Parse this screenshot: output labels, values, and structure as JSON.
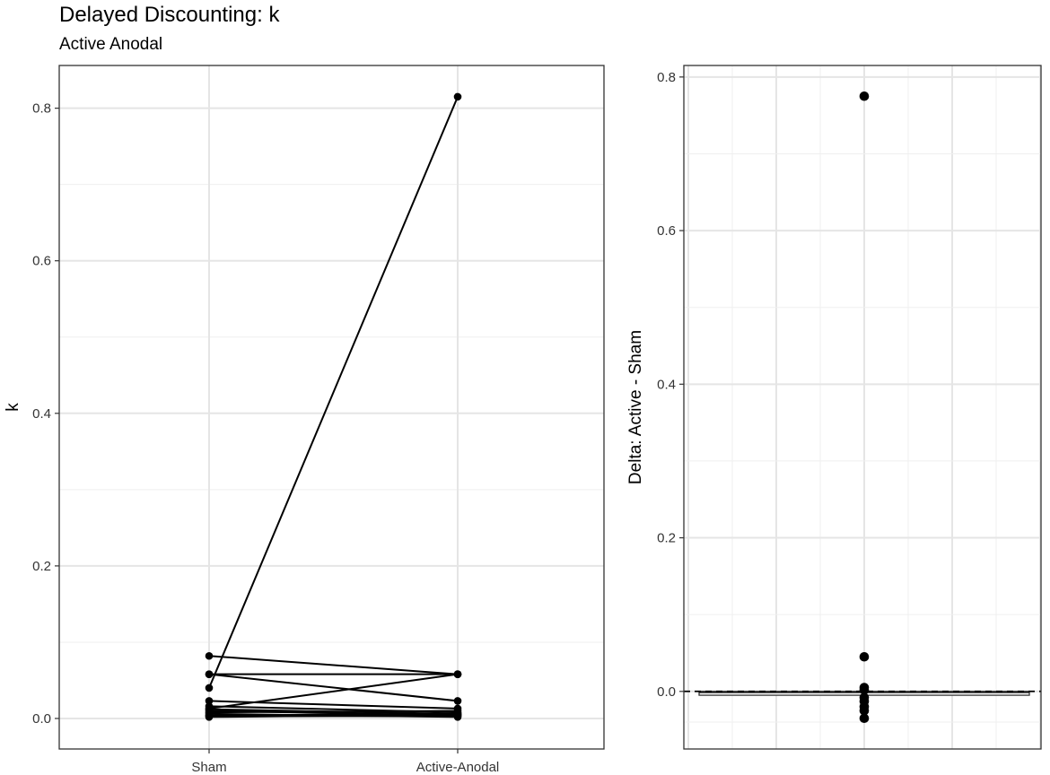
{
  "title": "Delayed Discounting: k",
  "subtitle": "Active Anodal",
  "chart_data": [
    {
      "type": "line",
      "ylabel": "k",
      "xlabel": "",
      "categories": [
        "Sham",
        "Active-Anodal"
      ],
      "ylim": [
        -0.04,
        0.856
      ],
      "yticks": [
        0.0,
        0.2,
        0.4,
        0.6,
        0.8
      ],
      "grid": true,
      "series": [
        {
          "values": [
            0.04,
            0.815
          ]
        },
        {
          "values": [
            0.082,
            0.058
          ]
        },
        {
          "values": [
            0.058,
            0.058
          ]
        },
        {
          "values": [
            0.058,
            0.023
          ]
        },
        {
          "values": [
            0.013,
            0.058
          ]
        },
        {
          "values": [
            0.023,
            0.013
          ]
        },
        {
          "values": [
            0.016,
            0.008
          ]
        },
        {
          "values": [
            0.012,
            0.006
          ]
        },
        {
          "values": [
            0.01,
            0.004
          ]
        },
        {
          "values": [
            0.008,
            0.01
          ]
        },
        {
          "values": [
            0.006,
            0.002
          ]
        },
        {
          "values": [
            0.004,
            0.006
          ]
        },
        {
          "values": [
            0.003,
            0.003
          ]
        },
        {
          "values": [
            0.002,
            0.005
          ]
        }
      ]
    },
    {
      "type": "box",
      "ylabel": "Delta: Active - Sham",
      "xlabel": "",
      "ylim": [
        -0.075,
        0.815
      ],
      "yticks": [
        0.0,
        0.2,
        0.4,
        0.6,
        0.8
      ],
      "grid": true,
      "reference_line": 0.0,
      "box": {
        "q1": -0.005,
        "median": -0.001,
        "q3": 0.0,
        "whisker_low": -0.005,
        "whisker_high": 0.0
      },
      "outliers": [
        0.775,
        0.045,
        0.005,
        0.002,
        -0.008,
        -0.013,
        -0.02,
        -0.025,
        -0.035
      ]
    }
  ]
}
